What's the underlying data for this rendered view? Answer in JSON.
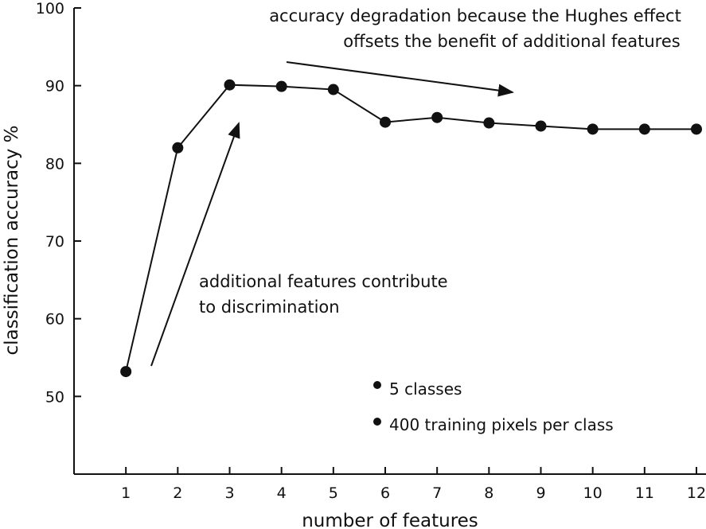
{
  "chart_data": {
    "type": "line",
    "title": "",
    "xlabel": "number of features",
    "ylabel": "classification accuracy %",
    "xlim": [
      0,
      12
    ],
    "ylim": [
      40,
      100
    ],
    "x_ticks": [
      "1",
      "2",
      "3",
      "4",
      "5",
      "6",
      "7",
      "8",
      "9",
      "10",
      "11",
      "12"
    ],
    "y_ticks": [
      "50",
      "60",
      "70",
      "80",
      "90",
      "100"
    ],
    "grid": false,
    "series": [
      {
        "x": [
          1,
          2,
          3,
          4,
          5,
          6,
          7,
          8,
          9,
          10,
          11,
          12
        ],
        "y": [
          53.2,
          82.0,
          90.1,
          89.9,
          89.5,
          85.3,
          85.9,
          85.2,
          84.8,
          84.4,
          84.4,
          84.4
        ],
        "color": "#111111"
      }
    ],
    "annotations": [
      {
        "lines": [
          "accuracy degradation because the Hughes effect",
          "offsets the benefit of additional features"
        ]
      },
      {
        "lines": [
          "additional features contribute",
          "to discrimination"
        ]
      }
    ],
    "legend_notes": [
      "5 classes",
      "400 training pixels per class"
    ]
  }
}
